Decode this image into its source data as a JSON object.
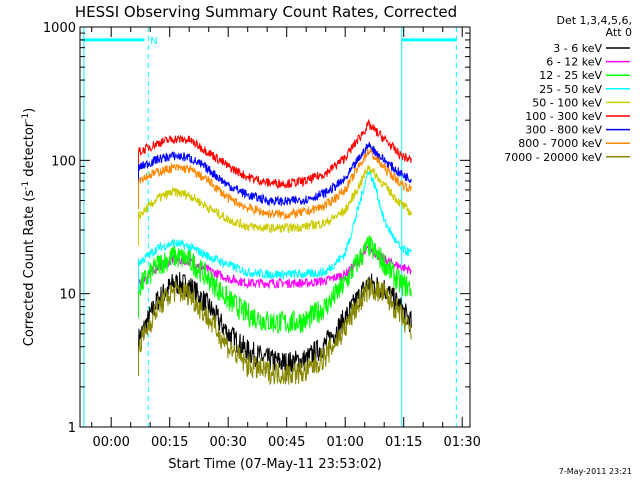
{
  "chart_data": {
    "type": "line",
    "title": "HESSI Observing Summary Count Rates, Corrected",
    "xlabel": "Start Time (07-May-11 23:53:02)",
    "ylabel_main": "Corrected Count Rate (s",
    "ylabel_sup1": "-1",
    "ylabel_mid": " detector",
    "ylabel_sup2": "-1",
    "ylabel_end": ")",
    "yscale": "log",
    "xlim_minutes": [
      -8,
      92
    ],
    "ylim": [
      1,
      1000
    ],
    "x_ticks": [
      {
        "label": "00:00",
        "minutes": 0
      },
      {
        "label": "00:15",
        "minutes": 15
      },
      {
        "label": "00:30",
        "minutes": 30
      },
      {
        "label": "00:45",
        "minutes": 45
      },
      {
        "label": "01:00",
        "minutes": 60
      },
      {
        "label": "01:15",
        "minutes": 75
      },
      {
        "label": "01:30",
        "minutes": 90
      }
    ],
    "y_ticks": [
      {
        "label": "1",
        "value": 1
      },
      {
        "label": "10",
        "value": 10
      },
      {
        "label": "100",
        "value": 100
      },
      {
        "label": "1000",
        "value": 1000
      }
    ],
    "legend_header": [
      "Det 1,3,4,5,6,",
      "Att 0"
    ],
    "legend_placement": "right",
    "data_window_minutes": [
      7,
      77
    ],
    "markers": {
      "night_solid_minutes": [
        -7,
        74.5
      ],
      "night_dashed_minutes": [
        9.5,
        88.5
      ],
      "night_bar_value": 800,
      "label": "N",
      "label_minutes": 10,
      "color": "#00ffff"
    },
    "timestamp": "7-May-2011 23:21",
    "series": [
      {
        "name": "3 - 6 keV",
        "color": "#000000",
        "points": [
          [
            7,
            4.5
          ],
          [
            12,
            9
          ],
          [
            16,
            12
          ],
          [
            20,
            11.5
          ],
          [
            25,
            8
          ],
          [
            30,
            5
          ],
          [
            35,
            3.7
          ],
          [
            40,
            3.2
          ],
          [
            45,
            3.0
          ],
          [
            50,
            3.2
          ],
          [
            55,
            4.2
          ],
          [
            60,
            6.5
          ],
          [
            63,
            9
          ],
          [
            66,
            12
          ],
          [
            70,
            11
          ],
          [
            74,
            8
          ],
          [
            77,
            6
          ]
        ]
      },
      {
        "name": "6 - 12 keV",
        "color": "#ff00ff",
        "points": [
          [
            7,
            12
          ],
          [
            12,
            16
          ],
          [
            16,
            18
          ],
          [
            20,
            17.5
          ],
          [
            25,
            15
          ],
          [
            30,
            13
          ],
          [
            35,
            12
          ],
          [
            40,
            12
          ],
          [
            45,
            12
          ],
          [
            50,
            12
          ],
          [
            55,
            12.5
          ],
          [
            60,
            14
          ],
          [
            63,
            17
          ],
          [
            66,
            22
          ],
          [
            70,
            18
          ],
          [
            74,
            16
          ],
          [
            77,
            15
          ]
        ]
      },
      {
        "name": "12 - 25 keV",
        "color": "#00ff00",
        "points": [
          [
            7,
            11
          ],
          [
            12,
            16.5
          ],
          [
            16,
            19
          ],
          [
            20,
            18
          ],
          [
            25,
            13
          ],
          [
            30,
            9
          ],
          [
            35,
            7
          ],
          [
            40,
            6.2
          ],
          [
            45,
            6
          ],
          [
            50,
            6.3
          ],
          [
            55,
            8
          ],
          [
            60,
            12
          ],
          [
            63,
            17
          ],
          [
            66,
            23
          ],
          [
            70,
            17
          ],
          [
            74,
            12
          ],
          [
            77,
            11
          ]
        ]
      },
      {
        "name": "25 - 50 keV",
        "color": "#00ffff",
        "points": [
          [
            7,
            17
          ],
          [
            12,
            22
          ],
          [
            16,
            24
          ],
          [
            20,
            22.5
          ],
          [
            25,
            19
          ],
          [
            30,
            16.5
          ],
          [
            35,
            14.5
          ],
          [
            40,
            14
          ],
          [
            45,
            14
          ],
          [
            50,
            14
          ],
          [
            55,
            14.5
          ],
          [
            60,
            20
          ],
          [
            63,
            40
          ],
          [
            66,
            85
          ],
          [
            68,
            60
          ],
          [
            70,
            35
          ],
          [
            74,
            22
          ],
          [
            77,
            20
          ]
        ]
      },
      {
        "name": "50 - 100 keV",
        "color": "#cccc00",
        "points": [
          [
            7,
            38
          ],
          [
            12,
            52
          ],
          [
            16,
            58
          ],
          [
            20,
            55
          ],
          [
            25,
            44
          ],
          [
            30,
            36
          ],
          [
            35,
            32
          ],
          [
            40,
            31
          ],
          [
            45,
            31
          ],
          [
            50,
            32
          ],
          [
            55,
            34
          ],
          [
            60,
            42
          ],
          [
            63,
            60
          ],
          [
            66,
            90
          ],
          [
            70,
            65
          ],
          [
            74,
            48
          ],
          [
            77,
            40
          ]
        ]
      },
      {
        "name": "100 - 300 keV",
        "color": "#ff0000",
        "points": [
          [
            7,
            115
          ],
          [
            12,
            135
          ],
          [
            16,
            145
          ],
          [
            20,
            142
          ],
          [
            25,
            115
          ],
          [
            30,
            90
          ],
          [
            35,
            75
          ],
          [
            40,
            68
          ],
          [
            45,
            67
          ],
          [
            50,
            70
          ],
          [
            55,
            80
          ],
          [
            60,
            105
          ],
          [
            63,
            140
          ],
          [
            66,
            185
          ],
          [
            70,
            145
          ],
          [
            74,
            110
          ],
          [
            77,
            100
          ]
        ]
      },
      {
        "name": "300 - 800 keV",
        "color": "#0000ff",
        "points": [
          [
            7,
            88
          ],
          [
            12,
            102
          ],
          [
            16,
            108
          ],
          [
            20,
            105
          ],
          [
            25,
            85
          ],
          [
            30,
            65
          ],
          [
            35,
            55
          ],
          [
            40,
            50
          ],
          [
            45,
            49
          ],
          [
            50,
            51
          ],
          [
            55,
            57
          ],
          [
            60,
            72
          ],
          [
            63,
            98
          ],
          [
            66,
            130
          ],
          [
            70,
            100
          ],
          [
            74,
            80
          ],
          [
            77,
            72
          ]
        ]
      },
      {
        "name": "800 - 7000 keV",
        "color": "#ff8800",
        "points": [
          [
            7,
            72
          ],
          [
            12,
            82
          ],
          [
            16,
            88
          ],
          [
            20,
            86
          ],
          [
            25,
            70
          ],
          [
            30,
            52
          ],
          [
            35,
            44
          ],
          [
            40,
            40
          ],
          [
            45,
            39
          ],
          [
            50,
            41
          ],
          [
            55,
            46
          ],
          [
            60,
            60
          ],
          [
            63,
            85
          ],
          [
            66,
            118
          ],
          [
            70,
            88
          ],
          [
            74,
            68
          ],
          [
            77,
            60
          ]
        ]
      },
      {
        "name": "7000 - 20000 keV",
        "color": "#888800",
        "points": [
          [
            7,
            4
          ],
          [
            12,
            8
          ],
          [
            16,
            10.5
          ],
          [
            20,
            10
          ],
          [
            25,
            6.5
          ],
          [
            30,
            4
          ],
          [
            35,
            2.9
          ],
          [
            40,
            2.6
          ],
          [
            45,
            2.5
          ],
          [
            50,
            2.6
          ],
          [
            55,
            3.4
          ],
          [
            60,
            5.5
          ],
          [
            63,
            8
          ],
          [
            66,
            11
          ],
          [
            70,
            10
          ],
          [
            74,
            7
          ],
          [
            77,
            5
          ]
        ]
      }
    ]
  }
}
